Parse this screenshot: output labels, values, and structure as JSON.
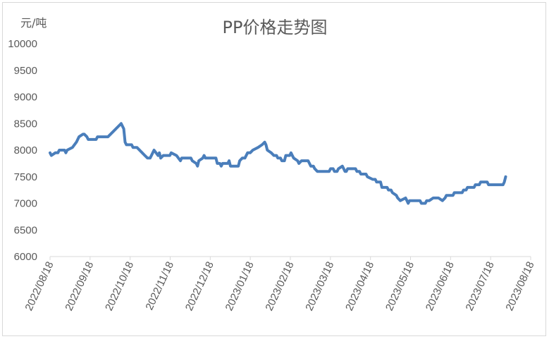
{
  "chart_data": {
    "type": "line",
    "title": "PP价格走势图",
    "ylabel": "元/吨",
    "xlabel": "",
    "ylim": [
      6000,
      10000
    ],
    "yticks": [
      6000,
      6500,
      7000,
      7500,
      8000,
      8500,
      9000,
      9500,
      10000
    ],
    "xticks": [
      "2022/08/18",
      "2022/09/18",
      "2022/10/18",
      "2022/11/18",
      "2022/12/18",
      "2023/01/18",
      "2023/02/18",
      "2023/03/18",
      "2023/04/18",
      "2023/05/18",
      "2023/06/18",
      "2023/07/18",
      "2023/08/18"
    ],
    "grid": false,
    "legend": "none",
    "line_color": "#4a7ebb",
    "series": [
      {
        "values": [
          [
            0,
            7950
          ],
          [
            1,
            7900
          ],
          [
            4,
            7950
          ],
          [
            6,
            7950
          ],
          [
            7,
            8000
          ],
          [
            11,
            8000
          ],
          [
            12,
            7950
          ],
          [
            13,
            8000
          ],
          [
            17,
            8050
          ],
          [
            20,
            8150
          ],
          [
            22,
            8250
          ],
          [
            25,
            8300
          ],
          [
            26,
            8300
          ],
          [
            28,
            8250
          ],
          [
            29,
            8200
          ],
          [
            35,
            8200
          ],
          [
            36,
            8250
          ],
          [
            44,
            8250
          ],
          [
            48,
            8350
          ],
          [
            52,
            8450
          ],
          [
            54,
            8500
          ],
          [
            56,
            8400
          ],
          [
            57,
            8150
          ],
          [
            58,
            8100
          ],
          [
            62,
            8100
          ],
          [
            63,
            8050
          ],
          [
            66,
            8050
          ],
          [
            70,
            7950
          ],
          [
            72,
            7900
          ],
          [
            74,
            7850
          ],
          [
            76,
            7850
          ],
          [
            77,
            7900
          ],
          [
            79,
            8000
          ],
          [
            82,
            7900
          ],
          [
            83,
            7950
          ],
          [
            84,
            7850
          ],
          [
            86,
            7900
          ],
          [
            91,
            7900
          ],
          [
            92,
            7950
          ],
          [
            96,
            7900
          ],
          [
            99,
            7800
          ],
          [
            100,
            7850
          ],
          [
            107,
            7850
          ],
          [
            108,
            7800
          ],
          [
            111,
            7750
          ],
          [
            112,
            7700
          ],
          [
            113,
            7800
          ],
          [
            116,
            7850
          ],
          [
            117,
            7900
          ],
          [
            118,
            7850
          ],
          [
            126,
            7850
          ],
          [
            127,
            7750
          ],
          [
            129,
            7750
          ],
          [
            130,
            7700
          ],
          [
            131,
            7750
          ],
          [
            135,
            7750
          ],
          [
            136,
            7800
          ],
          [
            137,
            7700
          ],
          [
            143,
            7700
          ],
          [
            144,
            7800
          ],
          [
            146,
            7850
          ],
          [
            148,
            7850
          ],
          [
            150,
            7950
          ],
          [
            152,
            7950
          ],
          [
            154,
            8000
          ],
          [
            158,
            8050
          ],
          [
            161,
            8100
          ],
          [
            163,
            8150
          ],
          [
            164,
            8100
          ],
          [
            165,
            8000
          ],
          [
            168,
            7950
          ],
          [
            170,
            7900
          ],
          [
            172,
            7900
          ],
          [
            173,
            7850
          ],
          [
            175,
            7850
          ],
          [
            176,
            7800
          ],
          [
            178,
            7800
          ],
          [
            179,
            7900
          ],
          [
            182,
            7900
          ],
          [
            183,
            7950
          ],
          [
            184,
            7900
          ],
          [
            185,
            7850
          ],
          [
            188,
            7800
          ],
          [
            189,
            7750
          ],
          [
            191,
            7800
          ],
          [
            196,
            7800
          ],
          [
            197,
            7750
          ],
          [
            198,
            7700
          ],
          [
            200,
            7700
          ],
          [
            201,
            7650
          ],
          [
            203,
            7600
          ],
          [
            212,
            7600
          ],
          [
            213,
            7650
          ],
          [
            215,
            7650
          ],
          [
            216,
            7600
          ],
          [
            218,
            7600
          ],
          [
            219,
            7650
          ],
          [
            222,
            7700
          ],
          [
            223,
            7650
          ],
          [
            224,
            7600
          ],
          [
            225,
            7600
          ],
          [
            226,
            7650
          ],
          [
            232,
            7650
          ],
          [
            233,
            7600
          ],
          [
            235,
            7600
          ],
          [
            236,
            7550
          ],
          [
            240,
            7550
          ],
          [
            241,
            7500
          ],
          [
            245,
            7450
          ],
          [
            247,
            7450
          ],
          [
            248,
            7400
          ],
          [
            251,
            7400
          ],
          [
            252,
            7300
          ],
          [
            256,
            7300
          ],
          [
            257,
            7250
          ],
          [
            259,
            7250
          ],
          [
            260,
            7200
          ],
          [
            263,
            7150
          ],
          [
            264,
            7100
          ],
          [
            266,
            7050
          ],
          [
            270,
            7100
          ],
          [
            271,
            7050
          ],
          [
            272,
            7000
          ],
          [
            273,
            7050
          ],
          [
            275,
            7050
          ],
          [
            279,
            7050
          ],
          [
            280,
            7050
          ],
          [
            281,
            7050
          ],
          [
            282,
            7000
          ],
          [
            285,
            7000
          ],
          [
            286,
            7050
          ],
          [
            288,
            7050
          ],
          [
            291,
            7100
          ],
          [
            295,
            7100
          ],
          [
            298,
            7050
          ],
          [
            300,
            7100
          ],
          [
            301,
            7150
          ],
          [
            306,
            7150
          ],
          [
            307,
            7200
          ],
          [
            313,
            7200
          ],
          [
            314,
            7250
          ],
          [
            316,
            7250
          ],
          [
            317,
            7300
          ],
          [
            322,
            7300
          ],
          [
            323,
            7350
          ],
          [
            325,
            7350
          ],
          [
            326,
            7350
          ],
          [
            327,
            7400
          ],
          [
            332,
            7400
          ],
          [
            333,
            7350
          ],
          [
            344,
            7350
          ],
          [
            345,
            7400
          ],
          [
            346,
            7500
          ]
        ]
      }
    ],
    "x_domain_days": [
      0,
      365
    ]
  }
}
